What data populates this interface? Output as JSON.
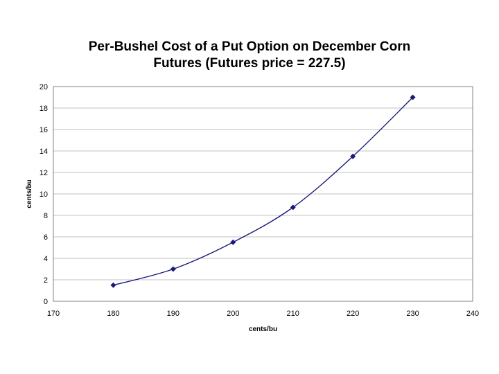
{
  "chart_data": {
    "type": "line",
    "title_lines": [
      "Per-Bushel Cost of a Put Option on December Corn",
      "Futures (Futures price = 227.5)"
    ],
    "xlabel": "cents/bu",
    "ylabel": "cents/bu",
    "xlim": [
      170,
      240
    ],
    "ylim": [
      0,
      20
    ],
    "x_ticks": [
      170,
      180,
      190,
      200,
      210,
      220,
      230,
      240
    ],
    "y_ticks": [
      0,
      2,
      4,
      6,
      8,
      10,
      12,
      14,
      16,
      18,
      20
    ],
    "grid": "horizontal",
    "legend": "none",
    "series": [
      {
        "x": [
          180,
          190,
          200,
          210,
          220,
          230
        ],
        "values": [
          1.5,
          3.0,
          5.5,
          8.75,
          13.5,
          19.0
        ],
        "color": "#1a1a7a",
        "marker": "diamond",
        "smooth": true
      }
    ],
    "colors": {
      "plot_border": "#808080",
      "gridline": "#c0c0c0"
    }
  }
}
